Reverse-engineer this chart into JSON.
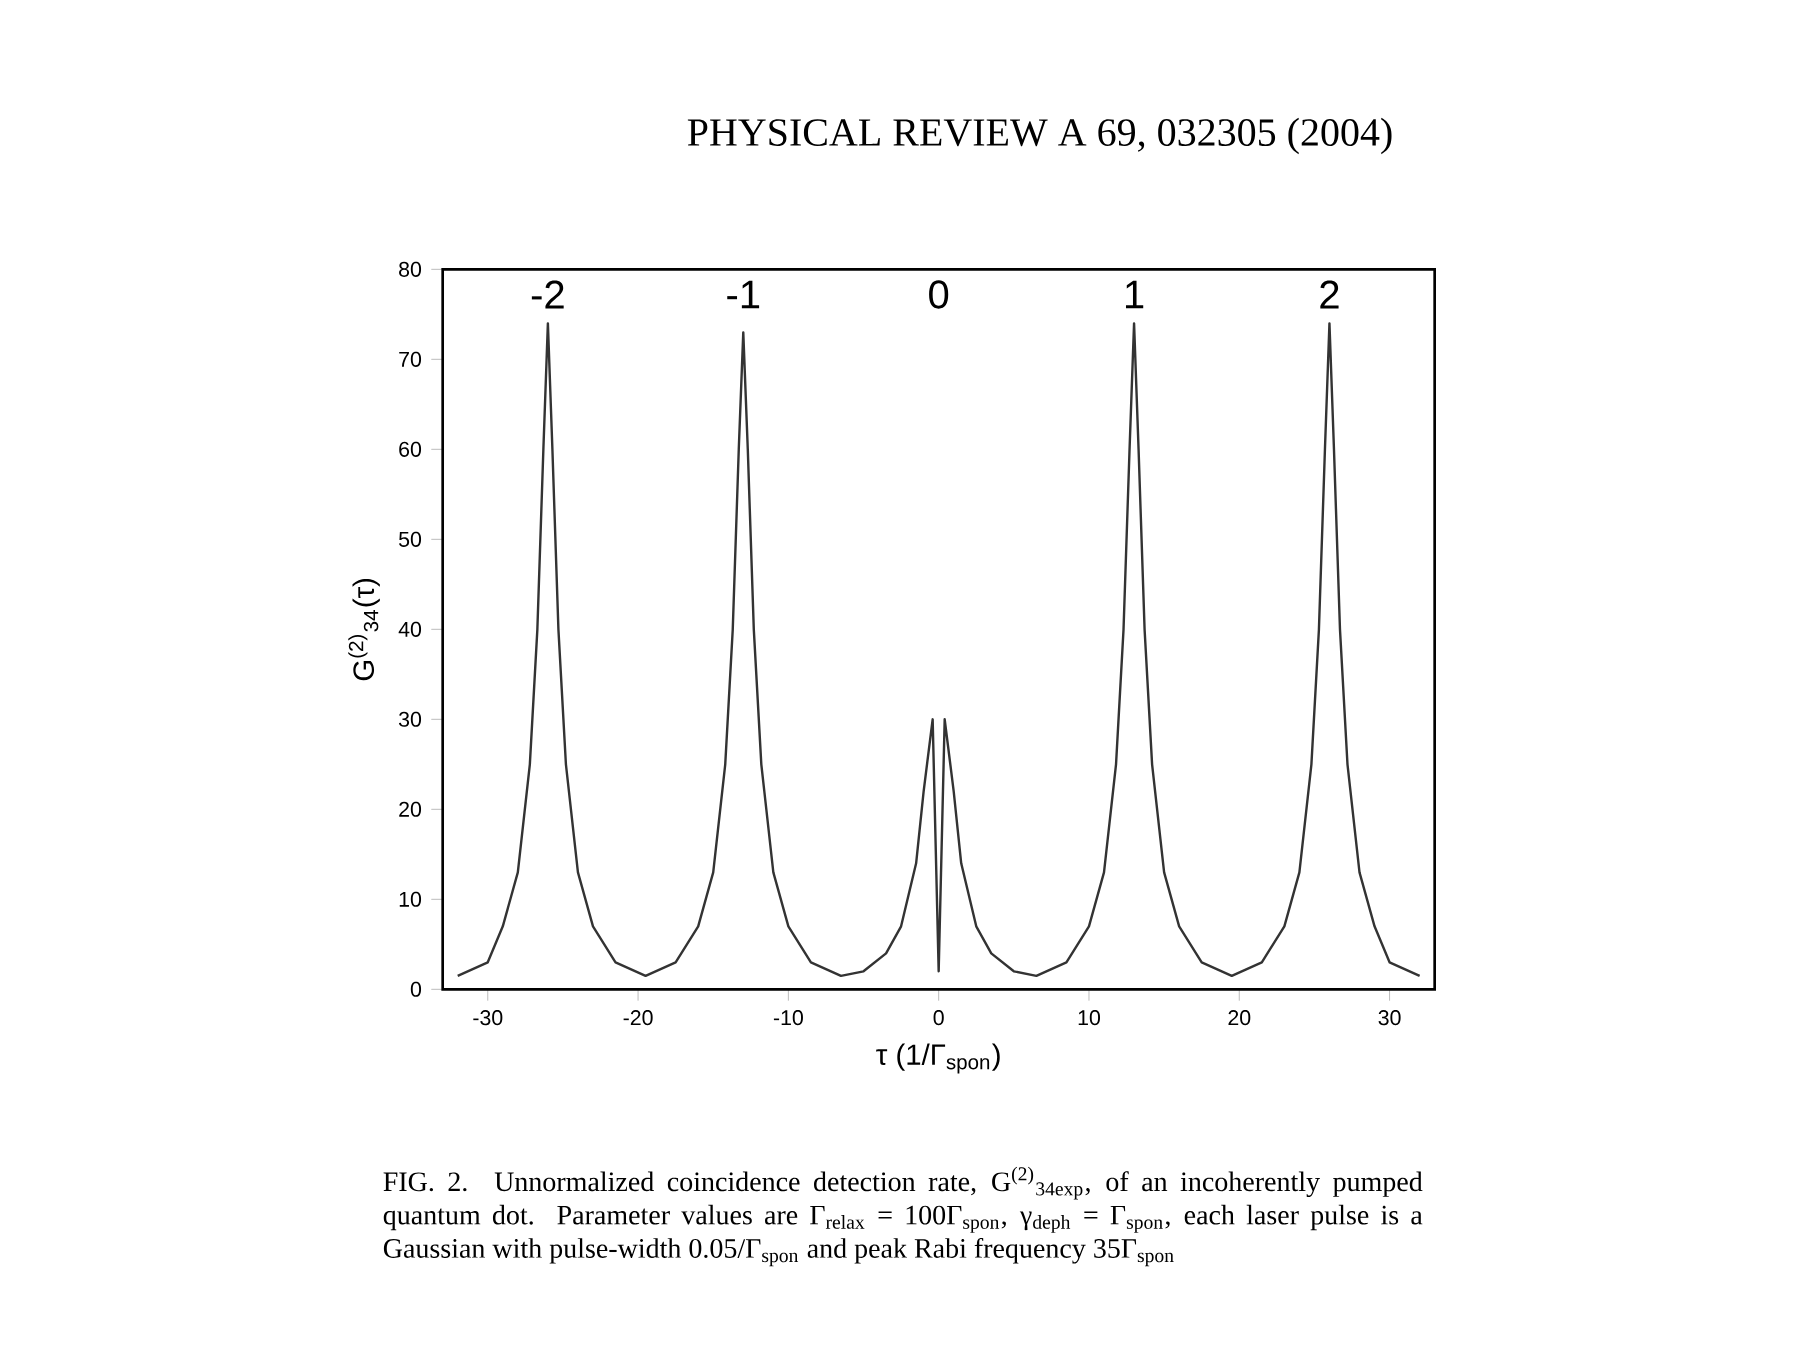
{
  "chart_data": {
    "type": "line",
    "title": "PHYSICAL REVIEW A 69, 032305 (2004)",
    "xlabel": "τ (1/Γ$_{spon}$)",
    "ylabel": "G$^{(2)}$$_{34}$(τ)",
    "x": [
      -32,
      -30,
      -29,
      -28,
      -27.2,
      -26.7,
      -26.3,
      -26,
      -25.7,
      -25.3,
      -24.8,
      -24,
      -23,
      -21.5,
      -19.5,
      -17.5,
      -16,
      -15,
      -14.2,
      -13.7,
      -13.3,
      -13,
      -12.7,
      -12.3,
      -11.8,
      -11,
      -10,
      -8.5,
      -6.5,
      -5,
      -3.5,
      -2.5,
      -1.5,
      -1,
      -0.4,
      0,
      0.4,
      1,
      1.5,
      2.5,
      3.5,
      5,
      6.5,
      8.5,
      10,
      11,
      11.8,
      12.3,
      12.7,
      13,
      13.3,
      13.7,
      14.2,
      15,
      16,
      17.5,
      19.5,
      21.5,
      23,
      24,
      24.8,
      25.3,
      25.7,
      26,
      26.3,
      26.7,
      27.2,
      28,
      29,
      30,
      32
    ],
    "series": [
      {
        "color": "#333333",
        "values": [
          1.5,
          3,
          7,
          13,
          25,
          40,
          60,
          74,
          60,
          40,
          25,
          13,
          7,
          3,
          1.5,
          3,
          7,
          13,
          25,
          40,
          60,
          73,
          60,
          40,
          25,
          13,
          7,
          3,
          1.5,
          2,
          4,
          7,
          14,
          22,
          30,
          2,
          30,
          22,
          14,
          7,
          4,
          2,
          1.5,
          3,
          7,
          13,
          25,
          40,
          60,
          74,
          60,
          40,
          25,
          13,
          7,
          3,
          1.5,
          3,
          7,
          13,
          25,
          40,
          60,
          74,
          60,
          40,
          25,
          13,
          7,
          3,
          1.5
        ]
      }
    ],
    "xlim": [
      -33,
      33
    ],
    "ylim": [
      0,
      80
    ],
    "xticks": [
      -30,
      -20,
      -10,
      0,
      10,
      20,
      30
    ],
    "yticks": [
      0,
      10,
      20,
      30,
      40,
      50,
      60,
      70,
      80
    ],
    "grid": false,
    "marker": "none",
    "line_style": "solid",
    "annotations": [
      "-2",
      "-1",
      "0",
      "1",
      "2",
      "FIG. 2. Unnormalized coincidence detection rate, G$^{(2)}$$_{34exp}$, of an incoherently pumped quantum dot. Parameter values are Γ$_{relax}$ = 100Γ$_{spon}$, γ$_{deph}$ = Γ$_{spon}$, each laser pulse is a Gaussian with pulse-width 0.05/Γ$_{spon}$ and peak Rabi frequency 35Γ$_{spon}$"
    ]
  }
}
